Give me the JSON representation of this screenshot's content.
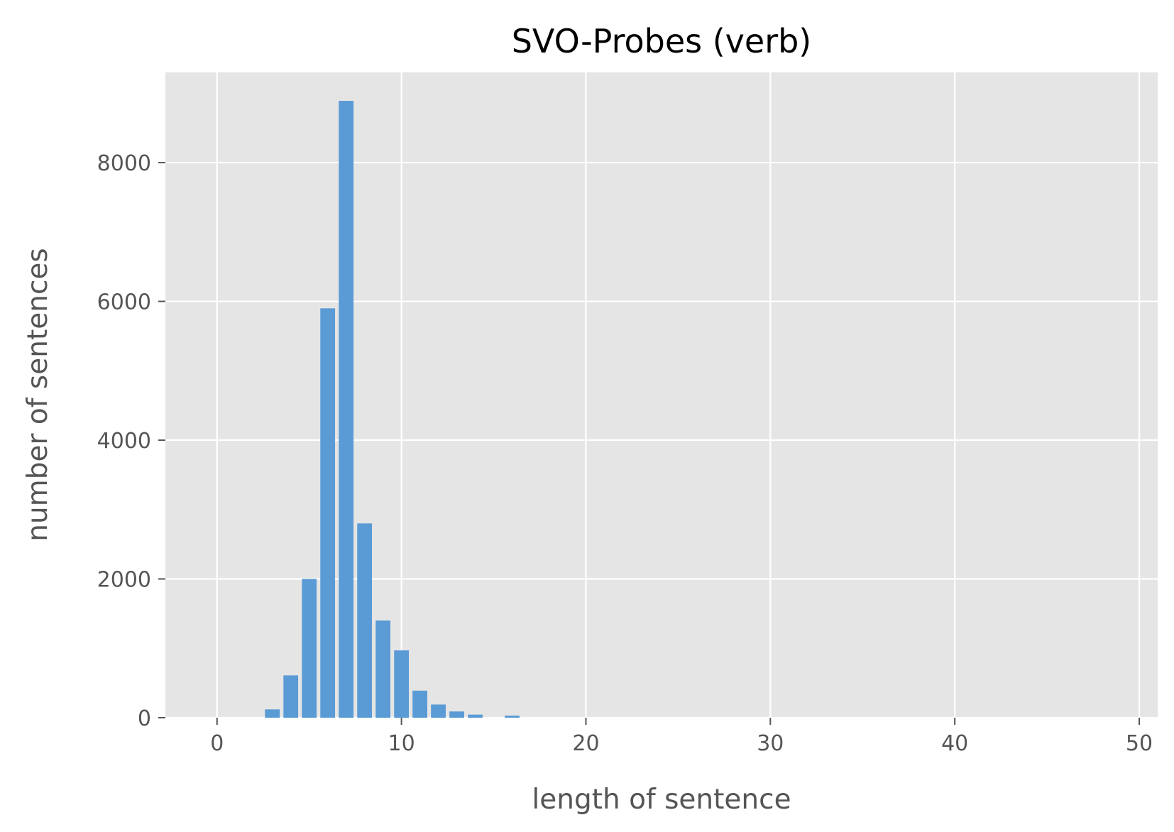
{
  "chart_data": {
    "type": "bar",
    "title": "SVO-Probes (verb)",
    "xlabel": "length of sentence",
    "ylabel": "number of sentences",
    "xlim": [
      -2.8,
      51.0
    ],
    "ylim": [
      0,
      9300
    ],
    "xticks": [
      0,
      10,
      20,
      30,
      40,
      50
    ],
    "yticks": [
      0,
      2000,
      4000,
      6000,
      8000
    ],
    "grid": true,
    "colors": {
      "bar": "#5b9bd5",
      "plot_background": "#e5e5e5",
      "grid": "#ffffff",
      "tick": "#555555"
    },
    "x": [
      3,
      4,
      5,
      6,
      7,
      8,
      9,
      10,
      11,
      12,
      13,
      14,
      16
    ],
    "values": [
      120,
      610,
      2000,
      5900,
      8890,
      2800,
      1400,
      970,
      390,
      190,
      90,
      45,
      30
    ]
  }
}
